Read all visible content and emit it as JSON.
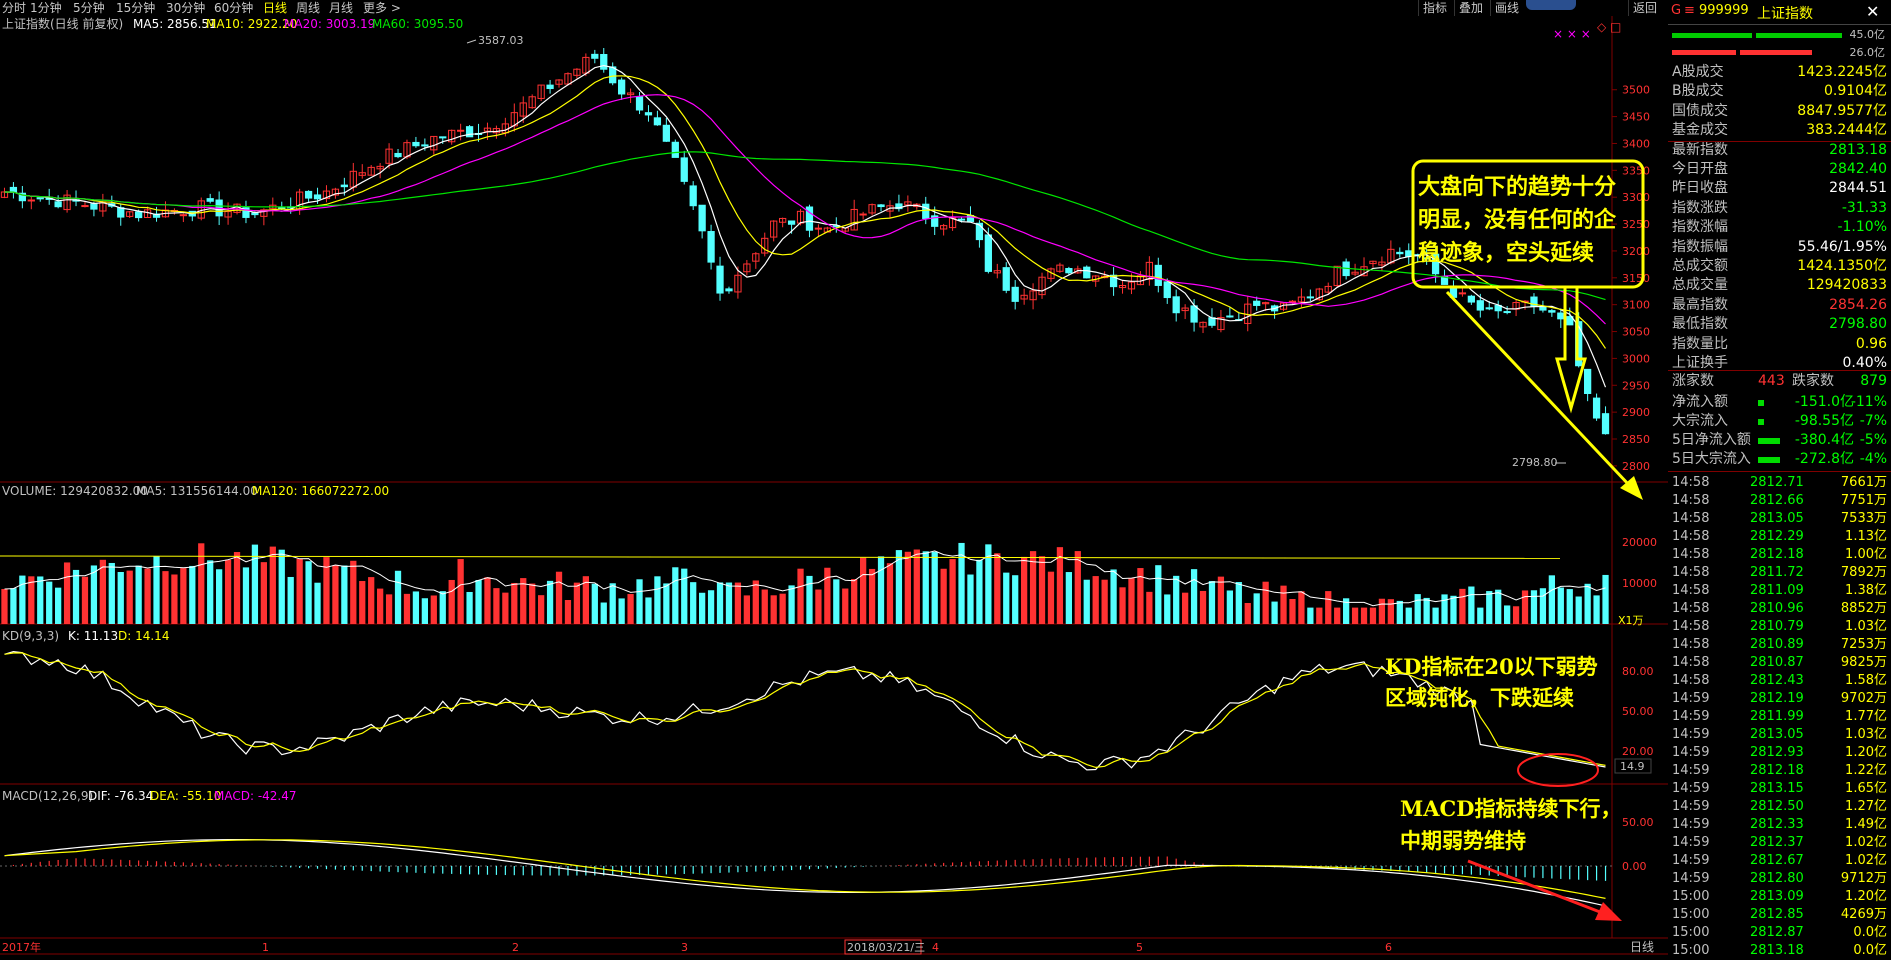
{
  "toolbar": {
    "timeframes": [
      "分时",
      "1分钟",
      "5分钟",
      "15分钟",
      "30分钟",
      "60分钟",
      "日线",
      "周线",
      "月线",
      "更多 >"
    ],
    "right": [
      "指标",
      "叠加",
      "画线",
      "返回"
    ]
  },
  "price_panel": {
    "name": "上证指数(日线 前复权)",
    "ma5": "MA5: 2856.51",
    "ma10": "MA10: 2922.20",
    "ma20": "MA20: 3003.19",
    "ma60": "MA60: 3095.50",
    "high_label": "3587.03",
    "low_label": "2798.80",
    "y_ticks": [
      "3500",
      "3450",
      "3400",
      "3350",
      "3300",
      "3250",
      "3200",
      "3150",
      "3100",
      "3050",
      "3000",
      "2950",
      "2900",
      "2850",
      "2800"
    ]
  },
  "volume_panel": {
    "label": "VOLUME: 129420832.00",
    "ma5": "MA5: 131556144.00",
    "ma120": "MA120: 166072272.00",
    "y_ticks": [
      "20000",
      "10000"
    ],
    "unit": "X1万"
  },
  "kd_panel": {
    "label": "KD(9,3,3)",
    "k": "K: 11.13",
    "d": "D: 14.14",
    "y_ticks": [
      "80.00",
      "50.00",
      "20.00"
    ],
    "k_value_box": "14.9"
  },
  "macd_panel": {
    "label": "MACD(12,26,9)",
    "dif": "DIF: -76.34",
    "dea": "DEA: -55.10",
    "macd": "MACD: -42.47",
    "y_ticks": [
      "50.00",
      "0.00"
    ]
  },
  "x_axis": {
    "labels": [
      "2017年",
      "1",
      "2",
      "3",
      "2018/03/21/三",
      "4",
      "5",
      "6"
    ],
    "period": "日线"
  },
  "annotations": {
    "main": [
      "大盘向下的趋势十分",
      "明显，没有任何的企",
      "稳迹象，空头延续"
    ],
    "kd": [
      "KD指标在20以下弱势",
      "区域钝化，下跌延续"
    ],
    "macd": [
      "MACD指标持续下行，",
      "中期弱势维持"
    ]
  },
  "side_panel": {
    "code": "999999",
    "name": "上证指数",
    "letter": "G",
    "bar_values": [
      "45.0亿",
      "26.0亿"
    ],
    "stats": [
      {
        "label": "A股成交",
        "value": "1423.2245亿",
        "color": "#ffff00"
      },
      {
        "label": "B股成交",
        "value": "0.9104亿",
        "color": "#ffff00"
      },
      {
        "label": "国债成交",
        "value": "8847.9577亿",
        "color": "#ffff00"
      },
      {
        "label": "基金成交",
        "value": "383.2444亿",
        "color": "#ffff00"
      },
      {
        "label": "最新指数",
        "value": "2813.18",
        "color": "#00ff00"
      },
      {
        "label": "今日开盘",
        "value": "2842.40",
        "color": "#00ff00"
      },
      {
        "label": "昨日收盘",
        "value": "2844.51",
        "color": "#ffffff"
      },
      {
        "label": "指数涨跌",
        "value": "-31.33",
        "color": "#00ff00"
      },
      {
        "label": "指数涨幅",
        "value": "-1.10%",
        "color": "#00ff00"
      },
      {
        "label": "指数振幅",
        "value": "55.46/1.95%",
        "color": "#ffffff"
      },
      {
        "label": "总成交额",
        "value": "1424.1350亿",
        "color": "#ffff00"
      },
      {
        "label": "总成交量",
        "value": "129420833",
        "color": "#ffff00"
      },
      {
        "label": "最高指数",
        "value": "2854.26",
        "color": "#ff3333"
      },
      {
        "label": "最低指数",
        "value": "2798.80",
        "color": "#00ff00"
      },
      {
        "label": "指数量比",
        "value": "0.96",
        "color": "#ffff00"
      },
      {
        "label": "上证换手",
        "value": "0.40%",
        "color": "#ffffff"
      }
    ],
    "rise_label": "涨家数",
    "rise_count": "443",
    "fall_label": "跌家数",
    "fall_count": "879",
    "flows": [
      {
        "label": "净流入额",
        "value": "-151.0亿",
        "pct": "-11%"
      },
      {
        "label": "大宗流入",
        "value": "-98.55亿",
        "pct": "-7%"
      },
      {
        "label": "5日净流入额",
        "value": "-380.4亿",
        "pct": "-5%"
      },
      {
        "label": "5日大宗流入",
        "value": "-272.8亿",
        "pct": "-4%"
      }
    ],
    "ticks": [
      [
        "14:58",
        "2812.71",
        "7661万"
      ],
      [
        "14:58",
        "2812.66",
        "7751万"
      ],
      [
        "14:58",
        "2813.05",
        "7533万"
      ],
      [
        "14:58",
        "2812.29",
        "1.13亿"
      ],
      [
        "14:58",
        "2812.18",
        "1.00亿"
      ],
      [
        "14:58",
        "2811.72",
        "7892万"
      ],
      [
        "14:58",
        "2811.09",
        "1.38亿"
      ],
      [
        "14:58",
        "2810.96",
        "8852万"
      ],
      [
        "14:58",
        "2810.79",
        "1.03亿"
      ],
      [
        "14:58",
        "2810.89",
        "7253万"
      ],
      [
        "14:58",
        "2810.87",
        "9825万"
      ],
      [
        "14:58",
        "2812.43",
        "1.58亿"
      ],
      [
        "14:59",
        "2812.19",
        "9702万"
      ],
      [
        "14:59",
        "2811.99",
        "1.77亿"
      ],
      [
        "14:59",
        "2813.05",
        "1.03亿"
      ],
      [
        "14:59",
        "2812.93",
        "1.20亿"
      ],
      [
        "14:59",
        "2812.18",
        "1.22亿"
      ],
      [
        "14:59",
        "2813.15",
        "1.65亿"
      ],
      [
        "14:59",
        "2812.50",
        "1.27亿"
      ],
      [
        "14:59",
        "2812.33",
        "1.49亿"
      ],
      [
        "14:59",
        "2812.37",
        "1.02亿"
      ],
      [
        "14:59",
        "2812.67",
        "1.02亿"
      ],
      [
        "14:59",
        "2812.80",
        "9712万"
      ],
      [
        "15:00",
        "2813.09",
        "1.20亿"
      ],
      [
        "15:00",
        "2812.85",
        "4269万"
      ],
      [
        "15:00",
        "2812.87",
        "0.0亿"
      ],
      [
        "15:00",
        "2813.18",
        "0.0亿"
      ]
    ]
  },
  "colors": {
    "up": "#ff3232",
    "down": "#54ffff",
    "ma5": "#ffffff",
    "ma10": "#ffff00",
    "ma20": "#ff00ff",
    "ma60": "#00e600",
    "grid": "#800000",
    "bg": "#000000"
  }
}
